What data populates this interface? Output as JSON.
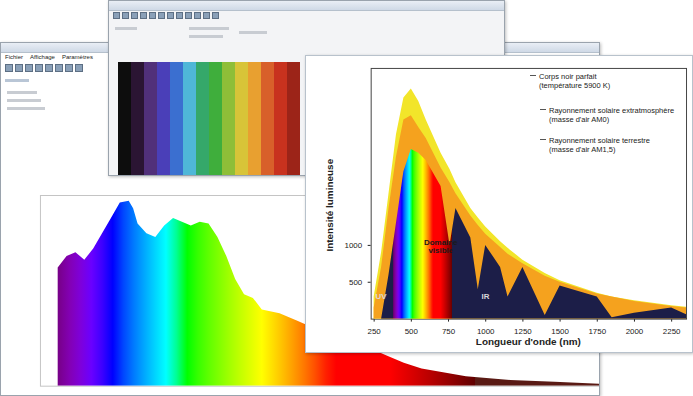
{
  "menu": [
    "Fichier",
    "Affichage",
    "Paramètres"
  ],
  "chart_data": [
    {
      "type": "strip",
      "colors": [
        "#0d0d0d",
        "#2b1533",
        "#51307a",
        "#4a3fb8",
        "#3b6fd0",
        "#4fb7d8",
        "#35a86a",
        "#3fae3c",
        "#8fbe38",
        "#d8c438",
        "#e8a030",
        "#d8602a",
        "#c8321e",
        "#9c2418"
      ],
      "tick_labels": false
    },
    {
      "type": "area",
      "x": [
        390,
        400,
        410,
        420,
        430,
        440,
        450,
        460,
        470,
        475,
        480,
        490,
        500,
        510,
        520,
        530,
        540,
        550,
        560,
        570,
        580,
        590,
        600,
        610,
        620,
        640,
        660,
        680,
        700,
        720,
        740,
        760,
        780,
        800,
        850,
        900,
        950,
        1000
      ],
      "values": [
        62,
        68,
        70,
        66,
        72,
        80,
        88,
        96,
        97,
        93,
        85,
        80,
        78,
        84,
        88,
        86,
        84,
        86,
        85,
        78,
        68,
        56,
        48,
        46,
        40,
        38,
        34,
        30,
        26,
        22,
        20,
        16,
        12,
        9,
        5,
        3,
        2,
        1
      ],
      "xlim": [
        370,
        1000
      ],
      "ylim": [
        0,
        100
      ],
      "tick_labels": false
    },
    {
      "type": "area",
      "x_label": "Longueur d'onde (nm)",
      "y_label": "Intensité lumineuse",
      "x": [
        250,
        300,
        350,
        400,
        450,
        500,
        550,
        600,
        700,
        760,
        800,
        900,
        950,
        1000,
        1100,
        1150,
        1250,
        1400,
        1500,
        1750,
        1850,
        2000,
        2250,
        2350
      ],
      "series": [
        {
          "name": "Corps noir parfait (température 5900 K)",
          "color": "#f2e52a",
          "values": [
            300,
            900,
            1700,
            2500,
            3000,
            3120,
            2950,
            2700,
            2250,
            2030,
            1850,
            1500,
            1370,
            1250,
            1050,
            960,
            800,
            620,
            520,
            350,
            300,
            250,
            180,
            160
          ]
        },
        {
          "name": "Rayonnement solaire extratmosphère (masse d'air AM0)",
          "color": "#f5a21e",
          "values": [
            150,
            700,
            1500,
            2200,
            2700,
            2757,
            2600,
            2450,
            2050,
            1850,
            1700,
            1400,
            1270,
            1150,
            970,
            880,
            750,
            580,
            500,
            340,
            300,
            240,
            170,
            150
          ]
        },
        {
          "name": "Rayonnement solaire terrestre (masse d'air AM1,5)",
          "color": "#1c1e48",
          "values": [
            0,
            0,
            600,
            1300,
            2000,
            2300,
            2250,
            2150,
            1800,
            1000,
            1500,
            1100,
            400,
            1000,
            700,
            300,
            700,
            50,
            450,
            300,
            20,
            80,
            150,
            60
          ]
        }
      ],
      "annotations": [
        {
          "text": "Domaine visible",
          "x": 698,
          "y": 986,
          "color": "#1a1a1a"
        },
        {
          "text": "UV",
          "x": 297,
          "y": 310,
          "color": "#d8d8d8"
        },
        {
          "text": "IR",
          "x": 999,
          "y": 310,
          "color": "#d8d8d8"
        }
      ],
      "xlim": [
        230,
        2350
      ],
      "ylim": [
        0,
        3400
      ],
      "xticks": [
        250,
        500,
        750,
        1000,
        1250,
        1500,
        1750,
        2000,
        2250
      ],
      "yticks": [
        500,
        1000
      ]
    }
  ]
}
